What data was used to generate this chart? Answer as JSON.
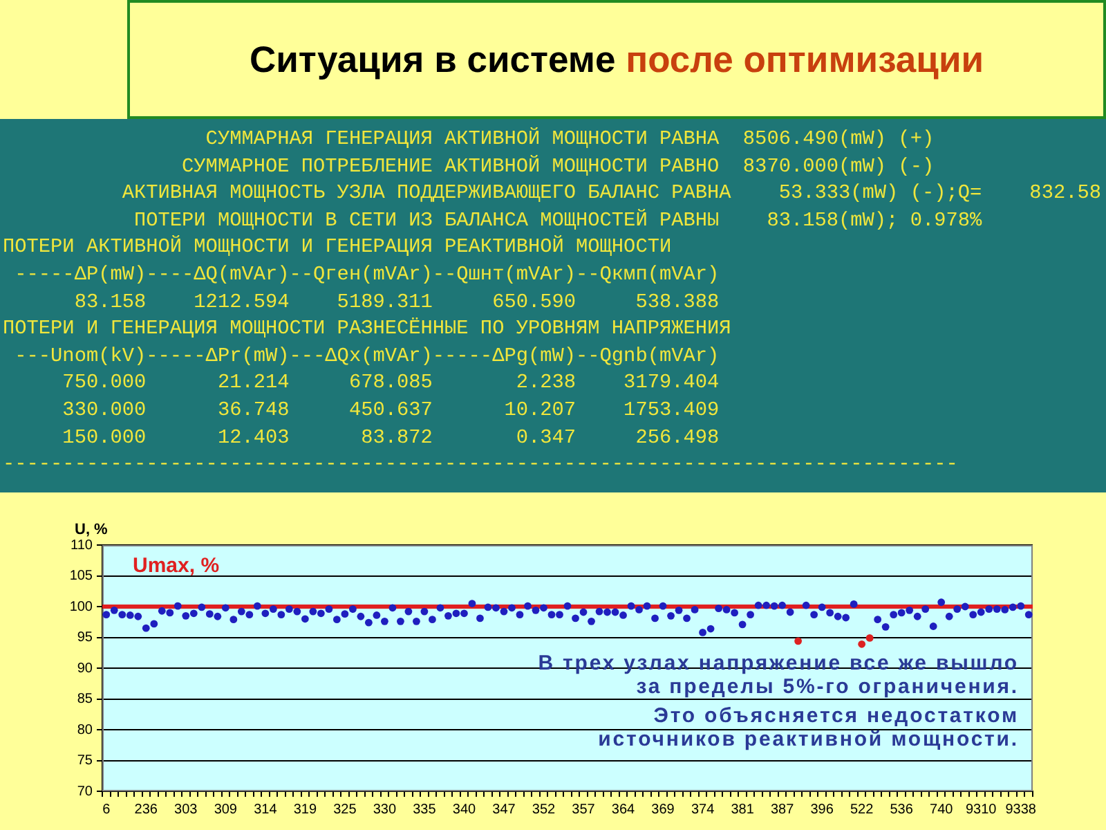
{
  "chart_data": [
    {
      "type": "other",
      "title": "Ситуация в системе после оптимизации",
      "annotations": [
        "                 СУММАРНАЯ ГЕНЕРАЦИЯ АКТИВНОЙ МОЩНОСТИ РАВНА  8506.490(mW) (+)",
        "               СУММАРНОЕ ПОТРЕБЛЕНИЕ АКТИВНОЙ МОЩНОСТИ РАВНО  8370.000(mW) (-)",
        "          АКТИВНАЯ МОЩНОСТЬ УЗЛА ПОДДЕРЖИВАЮЩЕГО БАЛАНС РАВНА    53.333(mW) (-);Q=    832.58",
        "           ПОТЕРИ МОЩНОСТИ В СЕТИ ИЗ БАЛАНСА МОЩНОСТЕЙ РАВНЫ    83.158(mW); 0.978%",
        "ПОТЕРИ АКТИВНОЙ МОЩНОСТИ И ГЕНЕРАЦИЯ РЕАКТИВНОЙ МОЩНОСТИ",
        " -----ΔP(mW)----ΔQ(mVAr)--Qген(mVAr)--Qшнт(mVAr)--Qкмп(mVAr)",
        "      83.158    1212.594    5189.311     650.590     538.388",
        "ПОТЕРИ И ГЕНЕРАЦИЯ МОЩНОСТИ РАЗНЕСЁННЫЕ ПО УРОВНЯМ НАПРЯЖЕНИЯ",
        " ---Unom(kV)-----ΔPr(mW)---ΔQx(mVAr)-----ΔPg(mW)--Qgnb(mVAr)",
        "     750.000      21.214     678.085       2.238    3179.404",
        "     330.000      36.748     450.637      10.207    1753.409",
        "     150.000      12.403      83.872       0.347     256.498",
        "--------------------------------------------------------------------------------"
      ]
    },
    {
      "type": "scatter",
      "ylabel": "U, %",
      "categories": [
        "6",
        null,
        null,
        null,
        null,
        "236",
        null,
        null,
        null,
        null,
        "303",
        null,
        null,
        null,
        null,
        "309",
        null,
        null,
        null,
        null,
        "314",
        null,
        null,
        null,
        null,
        "319",
        null,
        null,
        null,
        null,
        "325",
        null,
        null,
        null,
        null,
        "330",
        null,
        null,
        null,
        null,
        "335",
        null,
        null,
        null,
        null,
        "340",
        null,
        null,
        null,
        null,
        "347",
        null,
        null,
        null,
        null,
        "352",
        null,
        null,
        null,
        null,
        "357",
        null,
        null,
        null,
        null,
        "364",
        null,
        null,
        null,
        null,
        "369",
        null,
        null,
        null,
        null,
        "374",
        null,
        null,
        null,
        null,
        "381",
        null,
        null,
        null,
        null,
        "387",
        null,
        null,
        null,
        null,
        "396",
        null,
        null,
        null,
        null,
        "522",
        null,
        null,
        null,
        null,
        "536",
        null,
        null,
        null,
        null,
        "740",
        null,
        null,
        null,
        null,
        "9310",
        null,
        null,
        null,
        null,
        "9338",
        null
      ],
      "values": [
        98.7,
        99.4,
        98.7,
        98.6,
        98.4,
        96.5,
        97.2,
        99.3,
        99.0,
        100.1,
        98.5,
        98.9,
        99.9,
        98.8,
        98.4,
        99.8,
        97.9,
        99.2,
        98.7,
        100.1,
        98.9,
        99.6,
        98.7,
        99.6,
        99.2,
        98.0,
        99.2,
        98.9,
        99.6,
        97.9,
        98.8,
        99.6,
        98.4,
        97.4,
        98.6,
        97.6,
        99.8,
        97.6,
        99.2,
        97.6,
        99.2,
        97.9,
        99.8,
        98.5,
        98.9,
        98.9,
        100.5,
        98.1,
        99.9,
        99.8,
        99.2,
        99.8,
        98.7,
        100.1,
        99.4,
        99.8,
        98.7,
        98.7,
        100.1,
        98.1,
        99.1,
        97.6,
        99.2,
        99.1,
        99.1,
        98.6,
        100.1,
        99.5,
        100.1,
        98.1,
        100.1,
        98.5,
        99.4,
        98.1,
        99.5,
        95.8,
        96.4,
        99.7,
        99.5,
        99.0,
        97.1,
        98.7,
        100.2,
        100.2,
        100.1,
        100.2,
        99.1,
        94.4,
        100.2,
        98.7,
        99.9,
        99.0,
        98.4,
        98.2,
        100.4,
        93.9,
        94.9,
        97.9,
        96.7,
        98.7,
        99.0,
        99.4,
        98.4,
        99.6,
        96.8,
        100.7,
        98.4,
        99.6,
        100.0,
        98.7,
        99.1,
        99.6,
        99.6,
        99.5,
        99.9,
        100.1,
        98.7
      ],
      "colors": [
        "#1f1fbf",
        "#1f1fbf",
        "#1f1fbf",
        "#1f1fbf",
        "#1f1fbf",
        "#1f1fbf",
        "#1f1fbf",
        "#1f1fbf",
        "#1f1fbf",
        "#1f1fbf",
        "#1f1fbf",
        "#1f1fbf",
        "#1f1fbf",
        "#1f1fbf",
        "#1f1fbf",
        "#1f1fbf",
        "#1f1fbf",
        "#1f1fbf",
        "#1f1fbf",
        "#1f1fbf",
        "#1f1fbf",
        "#1f1fbf",
        "#1f1fbf",
        "#1f1fbf",
        "#1f1fbf",
        "#1f1fbf",
        "#1f1fbf",
        "#1f1fbf",
        "#1f1fbf",
        "#1f1fbf",
        "#1f1fbf",
        "#1f1fbf",
        "#1f1fbf",
        "#1f1fbf",
        "#1f1fbf",
        "#1f1fbf",
        "#1f1fbf",
        "#1f1fbf",
        "#1f1fbf",
        "#1f1fbf",
        "#1f1fbf",
        "#1f1fbf",
        "#1f1fbf",
        "#1f1fbf",
        "#1f1fbf",
        "#1f1fbf",
        "#1f1fbf",
        "#1f1fbf",
        "#1f1fbf",
        "#1f1fbf",
        "#1f1fbf",
        "#1f1fbf",
        "#1f1fbf",
        "#1f1fbf",
        "#1f1fbf",
        "#1f1fbf",
        "#1f1fbf",
        "#1f1fbf",
        "#1f1fbf",
        "#1f1fbf",
        "#1f1fbf",
        "#1f1fbf",
        "#1f1fbf",
        "#1f1fbf",
        "#1f1fbf",
        "#1f1fbf",
        "#1f1fbf",
        "#1f1fbf",
        "#1f1fbf",
        "#1f1fbf",
        "#1f1fbf",
        "#1f1fbf",
        "#1f1fbf",
        "#1f1fbf",
        "#1f1fbf",
        "#1f1fbf",
        "#1f1fbf",
        "#1f1fbf",
        "#1f1fbf",
        "#1f1fbf",
        "#1f1fbf",
        "#1f1fbf",
        "#1f1fbf",
        "#1f1fbf",
        "#1f1fbf",
        "#1f1fbf",
        "#1f1fbf",
        "#dd2222",
        "#1f1fbf",
        "#1f1fbf",
        "#1f1fbf",
        "#1f1fbf",
        "#1f1fbf",
        "#1f1fbf",
        "#1f1fbf",
        "#dd2222",
        "#dd2222",
        "#1f1fbf",
        "#1f1fbf",
        "#1f1fbf",
        "#1f1fbf",
        "#1f1fbf",
        "#1f1fbf",
        "#1f1fbf",
        "#1f1fbf",
        "#1f1fbf",
        "#1f1fbf",
        "#1f1fbf",
        "#1f1fbf",
        "#1f1fbf",
        "#1f1fbf",
        "#1f1fbf",
        "#1f1fbf",
        "#1f1fbf",
        "#1f1fbf",
        "#1f1fbf",
        "#1f1fbf"
      ],
      "marker": "circle",
      "ylim": [
        70,
        110
      ],
      "yticks": [
        70,
        75,
        80,
        85,
        90,
        95,
        100,
        105,
        110
      ],
      "grid": "y",
      "ref_lines": [
        {
          "axis": "y",
          "value": 100,
          "label": "Umax, %",
          "color": "#e02020"
        }
      ],
      "annotations": [
        "В трех узлах напряжение все же вышло за пределы 5%-го ограничения.",
        "Это объясняется недостатком источников реактивной мощности."
      ]
    }
  ]
}
